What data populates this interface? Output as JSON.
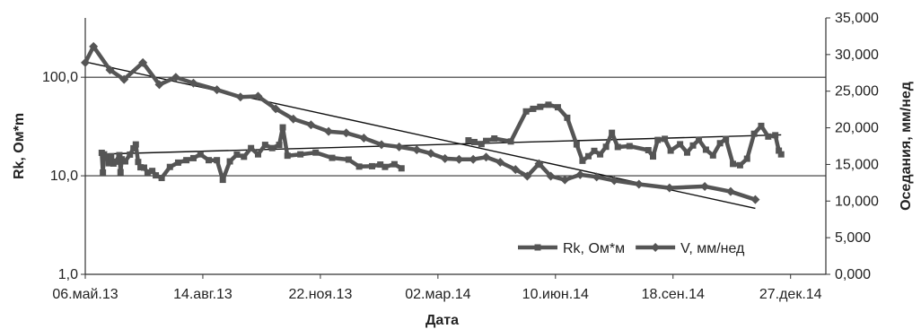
{
  "chart_data": {
    "type": "line",
    "title": "",
    "xlabel": "Дата",
    "ylabel_left": "Rk, Ом*m",
    "ylabel_right": "Оседания, мм/нед",
    "x_axis": {
      "range": [
        "2013-05-06",
        "2015-01-26"
      ],
      "tick_values": [
        "2013-05-06",
        "2013-08-14",
        "2013-11-22",
        "2014-03-02",
        "2014-06-10",
        "2014-09-18",
        "2014-12-27"
      ],
      "tick_labels": [
        "06.май.13",
        "14.авг.13",
        "22.ноя.13",
        "02.мар.14",
        "10.июн.14",
        "18.сен.14",
        "27.дек.14"
      ]
    },
    "y_left": {
      "scale": "log",
      "range": [
        1,
        400
      ],
      "tick_values": [
        1,
        10,
        100
      ],
      "tick_labels": [
        "1,0",
        "10,0",
        "100,0"
      ],
      "gridlines": true
    },
    "y_right": {
      "scale": "linear",
      "range": [
        0,
        35
      ],
      "tick_values": [
        0,
        5,
        10,
        15,
        20,
        25,
        30,
        35
      ],
      "tick_labels": [
        "0,000",
        "5,000",
        "10,000",
        "15,000",
        "20,000",
        "25,000",
        "30,000",
        "35,000"
      ]
    },
    "legend": {
      "placement": "bottom-right",
      "entries": [
        "Rk, Ом*м",
        "V, мм/нед"
      ]
    },
    "series": [
      {
        "name": "Rk, Ом*м",
        "axis": "left",
        "marker": "square",
        "segments": [
          [
            [
              "2013-05-20",
              17.1
            ],
            [
              "2013-05-21",
              10.8
            ],
            [
              "2013-05-22",
              16.5
            ],
            [
              "2013-05-24",
              15.7
            ],
            [
              "2013-05-26",
              13.4
            ],
            [
              "2013-05-28",
              15.8
            ],
            [
              "2013-05-30",
              13.3
            ],
            [
              "2013-06-01",
              13.9
            ],
            [
              "2013-06-04",
              16.2
            ],
            [
              "2013-06-05",
              10.9
            ],
            [
              "2013-06-06",
              14.7
            ],
            [
              "2013-06-09",
              14.0
            ],
            [
              "2013-06-13",
              16.4
            ],
            [
              "2013-06-16",
              19.0
            ],
            [
              "2013-06-18",
              20.8
            ],
            [
              "2013-06-20",
              13.8
            ],
            [
              "2013-06-22",
              12.2
            ],
            [
              "2013-06-25",
              12.1
            ],
            [
              "2013-06-28",
              10.8
            ],
            [
              "2013-07-02",
              11.2
            ],
            [
              "2013-07-05",
              10.1
            ],
            [
              "2013-07-10",
              9.5
            ],
            [
              "2013-07-17",
              12.3
            ],
            [
              "2013-07-24",
              13.6
            ],
            [
              "2013-07-31",
              14.4
            ],
            [
              "2013-08-06",
              15.1
            ],
            [
              "2013-08-12",
              16.5
            ],
            [
              "2013-08-19",
              14.4
            ],
            [
              "2013-08-26",
              14.4
            ],
            [
              "2013-08-31",
              9.1
            ],
            [
              "2013-09-06",
              14.0
            ],
            [
              "2013-09-12",
              16.4
            ],
            [
              "2013-09-18",
              15.6
            ],
            [
              "2013-09-24",
              19.1
            ],
            [
              "2013-09-30",
              16.5
            ],
            [
              "2013-10-06",
              20.6
            ],
            [
              "2013-10-12",
              19.1
            ],
            [
              "2013-10-18",
              20.6
            ],
            [
              "2013-10-21",
              31.0
            ],
            [
              "2013-10-25",
              16.0
            ],
            [
              "2013-11-05",
              16.5
            ],
            [
              "2013-11-18",
              17.2
            ],
            [
              "2013-12-02",
              15.2
            ],
            [
              "2013-12-16",
              14.6
            ],
            [
              "2013-12-25",
              12.4
            ],
            [
              "2014-01-05",
              12.5
            ],
            [
              "2014-01-12",
              13.0
            ],
            [
              "2014-01-16",
              12.3
            ],
            [
              "2014-01-24",
              13.1
            ],
            [
              "2014-01-30",
              11.9
            ]
          ],
          [
            [
              "2014-03-28",
              22.9
            ],
            [
              "2014-04-02",
              22.0
            ],
            [
              "2014-04-08",
              21.0
            ],
            [
              "2014-04-12",
              22.6
            ],
            [
              "2014-04-19",
              23.9
            ],
            [
              "2014-05-03",
              22.3
            ],
            [
              "2014-05-16",
              45.0
            ],
            [
              "2014-05-22",
              47.8
            ],
            [
              "2014-05-28",
              50.1
            ],
            [
              "2014-06-04",
              52.6
            ],
            [
              "2014-06-12",
              49.6
            ],
            [
              "2014-06-20",
              38.8
            ],
            [
              "2014-06-28",
              20.8
            ],
            [
              "2014-07-03",
              14.2
            ],
            [
              "2014-07-08",
              15.8
            ],
            [
              "2014-07-13",
              17.9
            ],
            [
              "2014-07-18",
              16.5
            ],
            [
              "2014-07-23",
              19.7
            ],
            [
              "2014-07-28",
              27.3
            ],
            [
              "2014-08-02",
              19.6
            ],
            [
              "2014-08-12",
              20.0
            ],
            [
              "2014-08-28",
              18.2
            ],
            [
              "2014-09-01",
              15.7
            ],
            [
              "2014-09-05",
              23.1
            ],
            [
              "2014-09-11",
              23.7
            ],
            [
              "2014-09-16",
              18.0
            ],
            [
              "2014-09-24",
              20.9
            ],
            [
              "2014-09-30",
              17.2
            ],
            [
              "2014-10-05",
              20.3
            ],
            [
              "2014-10-10",
              23.2
            ],
            [
              "2014-10-16",
              18.4
            ],
            [
              "2014-10-22",
              16.1
            ],
            [
              "2014-10-28",
              21.4
            ],
            [
              "2014-11-02",
              23.6
            ],
            [
              "2014-11-08",
              13.2
            ],
            [
              "2014-11-14",
              12.8
            ],
            [
              "2014-11-20",
              14.9
            ],
            [
              "2014-11-26",
              26.7
            ],
            [
              "2014-12-02",
              32.1
            ],
            [
              "2014-12-08",
              25.0
            ],
            [
              "2014-12-14",
              25.8
            ],
            [
              "2014-12-17",
              18.0
            ],
            [
              "2014-12-19",
              16.5
            ]
          ]
        ]
      },
      {
        "name": "V, мм/нед",
        "axis": "right",
        "marker": "diamond",
        "segments": [
          [
            [
              "2013-05-06",
              28.9
            ],
            [
              "2013-05-13",
              31.1
            ],
            [
              "2013-05-27",
              27.9
            ],
            [
              "2013-06-08",
              26.6
            ],
            [
              "2013-06-24",
              28.9
            ],
            [
              "2013-07-08",
              25.9
            ],
            [
              "2013-07-22",
              26.9
            ],
            [
              "2013-08-06",
              26.1
            ],
            [
              "2013-08-26",
              25.2
            ],
            [
              "2013-09-15",
              24.2
            ],
            [
              "2013-09-30",
              24.3
            ],
            [
              "2013-10-15",
              22.6
            ],
            [
              "2013-10-30",
              21.2
            ],
            [
              "2013-11-14",
              20.4
            ],
            [
              "2013-11-29",
              19.5
            ],
            [
              "2013-12-14",
              19.3
            ],
            [
              "2013-12-29",
              18.6
            ],
            [
              "2014-01-13",
              17.7
            ],
            [
              "2014-01-28",
              17.4
            ],
            [
              "2014-02-12",
              17.0
            ],
            [
              "2014-02-24",
              16.5
            ],
            [
              "2014-03-08",
              15.8
            ],
            [
              "2014-03-20",
              15.7
            ],
            [
              "2014-04-01",
              15.7
            ],
            [
              "2014-04-12",
              16.0
            ],
            [
              "2014-04-24",
              15.3
            ],
            [
              "2014-05-07",
              14.3
            ],
            [
              "2014-05-17",
              13.4
            ],
            [
              "2014-05-27",
              15.1
            ],
            [
              "2014-06-06",
              13.4
            ],
            [
              "2014-06-18",
              12.9
            ],
            [
              "2014-07-01",
              13.6
            ],
            [
              "2014-07-15",
              13.3
            ],
            [
              "2014-07-30",
              12.8
            ],
            [
              "2014-08-20",
              12.3
            ],
            [
              "2014-09-15",
              11.8
            ],
            [
              "2014-10-15",
              12.0
            ],
            [
              "2014-11-06",
              11.3
            ],
            [
              "2014-11-27",
              10.2
            ]
          ]
        ]
      }
    ],
    "trendlines": [
      {
        "series": "V, мм/нед",
        "axis": "right",
        "from": [
          "2013-05-06",
          29.0
        ],
        "to": [
          "2014-11-27",
          9.0
        ]
      },
      {
        "series": "Rk, Ом*м",
        "axis": "left",
        "from": [
          "2013-05-20",
          16.6
        ],
        "to": [
          "2014-12-19",
          26.0
        ]
      }
    ]
  }
}
